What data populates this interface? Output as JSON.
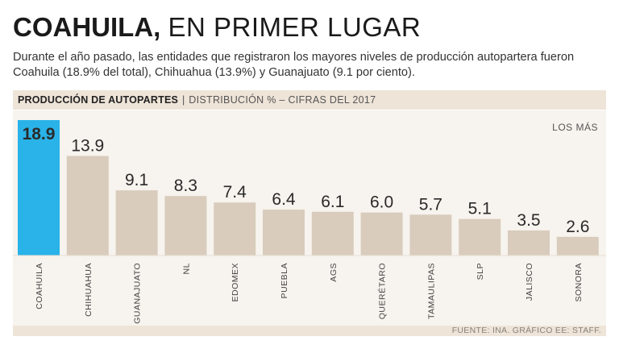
{
  "header": {
    "title_bold": "COAHUILA,",
    "title_light": "EN PRIMER LUGAR",
    "dek": "Durante el año pasado, las entidades que registraron los mayores niveles de producción autopartera fueron Coahuila (18.9% del total), Chihuahua (13.9%) y Guanajuato (9.1 por ciento)."
  },
  "section": {
    "title": "PRODUCCIÓN DE AUTOPARTES",
    "separator": "|",
    "subtitle": "DISTRIBUCIÓN % – CIFRAS DEL 2017"
  },
  "note": "LOS MÁS",
  "source": "FUENTE: INA. GRÁFICO EE: STAFF.",
  "colors": {
    "highlight": "#29b3e8",
    "bar": "#d9ccbd",
    "panel": "#f7f3ee",
    "strip": "#eee4d8"
  },
  "chart_data": {
    "type": "bar",
    "title": "PRODUCCIÓN DE AUTOPARTES",
    "subtitle": "DISTRIBUCIÓN % – CIFRAS DEL 2017",
    "categories": [
      "COAHUILA",
      "CHIHUAHUA",
      "GUANAJUATO",
      "NL",
      "EDOMEX",
      "PUEBLA",
      "AGS",
      "QUERÉTARO",
      "TAMAULIPAS",
      "SLP",
      "JALISCO",
      "SONORA"
    ],
    "values": [
      18.9,
      13.9,
      9.1,
      8.3,
      7.4,
      6.4,
      6.1,
      6.0,
      5.7,
      5.1,
      3.5,
      2.6
    ],
    "labels": [
      "18.9",
      "13.9",
      "9.1",
      "8.3",
      "7.4",
      "6.4",
      "6.1",
      "6.0",
      "5.7",
      "5.1",
      "3.5",
      "2.6"
    ],
    "highlight_index": 0,
    "ylim": [
      0,
      18.9
    ],
    "xlabel": "",
    "ylabel": "",
    "grid": false
  }
}
